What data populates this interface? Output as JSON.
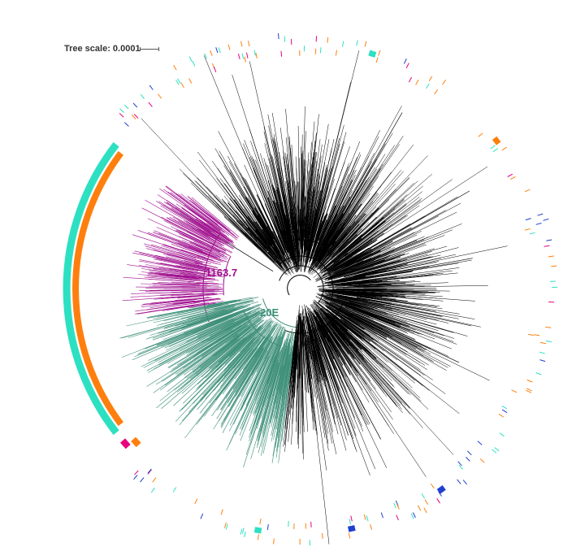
{
  "tree_scale": {
    "label": "Tree scale: 0.0001"
  },
  "clades": [
    {
      "label": "1163.7",
      "color": "#a0108f"
    },
    {
      "label": "20E",
      "color": "#3d8f78"
    }
  ],
  "colors": {
    "backbone": "#000000",
    "clade_magenta": "#a0108f",
    "clade_green": "#3d8f78",
    "ring_teal": "#2de0c2",
    "ring_orange": "#ff7f0e",
    "ring_pink": "#e6007e",
    "ring_blue": "#1f3fd1"
  }
}
